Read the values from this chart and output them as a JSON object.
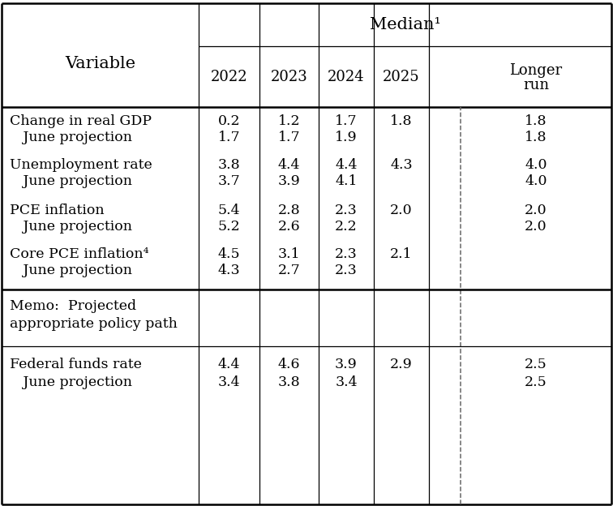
{
  "title": "Median¹",
  "bg_color": "#ffffff",
  "text_color": "#000000",
  "line_color": "#000000",
  "dashed_color": "#666666",
  "rows": [
    {
      "label": "Change in real GDP",
      "sub_label": "   June projection",
      "v2022": "0.2",
      "v2023": "1.2",
      "v2024": "1.7",
      "v2025": "1.8",
      "vlr": "1.8",
      "s2022": "1.7",
      "s2023": "1.7",
      "s2024": "1.9",
      "s2025": "",
      "slr": "1.8"
    },
    {
      "label": "Unemployment rate",
      "sub_label": "   June projection",
      "v2022": "3.8",
      "v2023": "4.4",
      "v2024": "4.4",
      "v2025": "4.3",
      "vlr": "4.0",
      "s2022": "3.7",
      "s2023": "3.9",
      "s2024": "4.1",
      "s2025": "",
      "slr": "4.0"
    },
    {
      "label": "PCE inflation",
      "sub_label": "   June projection",
      "v2022": "5.4",
      "v2023": "2.8",
      "v2024": "2.3",
      "v2025": "2.0",
      "vlr": "2.0",
      "s2022": "5.2",
      "s2023": "2.6",
      "s2024": "2.2",
      "s2025": "",
      "slr": "2.0"
    },
    {
      "label": "Core PCE inflation⁴",
      "sub_label": "   June projection",
      "v2022": "4.5",
      "v2023": "3.1",
      "v2024": "2.3",
      "v2025": "2.1",
      "vlr": "",
      "s2022": "4.3",
      "s2023": "2.7",
      "s2024": "2.3",
      "s2025": "",
      "slr": ""
    }
  ],
  "memo_label1": "Memo:  Projected",
  "memo_label2": "appropriate policy path",
  "policy": {
    "label": "Federal funds rate",
    "sub_label": "   June projection",
    "v2022": "4.4",
    "v2023": "4.6",
    "v2024": "3.9",
    "v2025": "2.9",
    "vlr": "2.5",
    "s2022": "3.4",
    "s2023": "3.8",
    "s2024": "3.4",
    "s2025": "",
    "slr": "2.5"
  }
}
